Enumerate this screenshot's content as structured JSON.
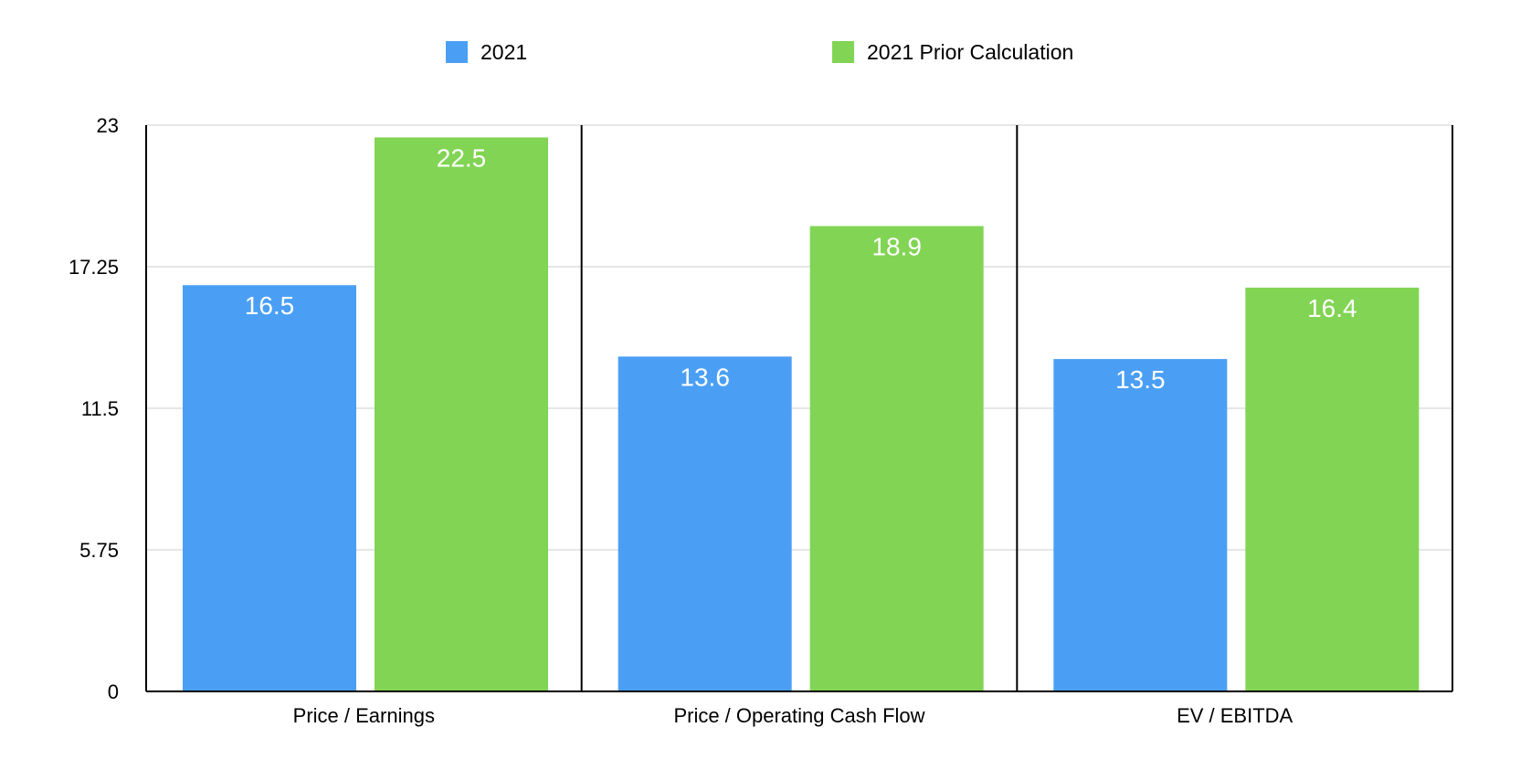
{
  "colors": {
    "series_0": "#4a9ff5",
    "series_1": "#82d454",
    "grid": "#cccccc",
    "axis": "#000000"
  },
  "legend": [
    {
      "label": "2021"
    },
    {
      "label": "2021 Prior Calculation"
    }
  ],
  "chart_data": {
    "type": "bar",
    "categories": [
      "Price / Earnings",
      "Price / Operating Cash Flow",
      "EV / EBITDA"
    ],
    "series": [
      {
        "name": "2021",
        "values": [
          16.5,
          13.6,
          13.5
        ]
      },
      {
        "name": "2021 Prior Calculation",
        "values": [
          22.5,
          18.9,
          16.4
        ]
      }
    ],
    "yticks": [
      "0",
      "5.75",
      "11.5",
      "17.25",
      "23"
    ],
    "ylim": [
      0,
      23
    ],
    "grid": true,
    "legend_position": "top"
  }
}
